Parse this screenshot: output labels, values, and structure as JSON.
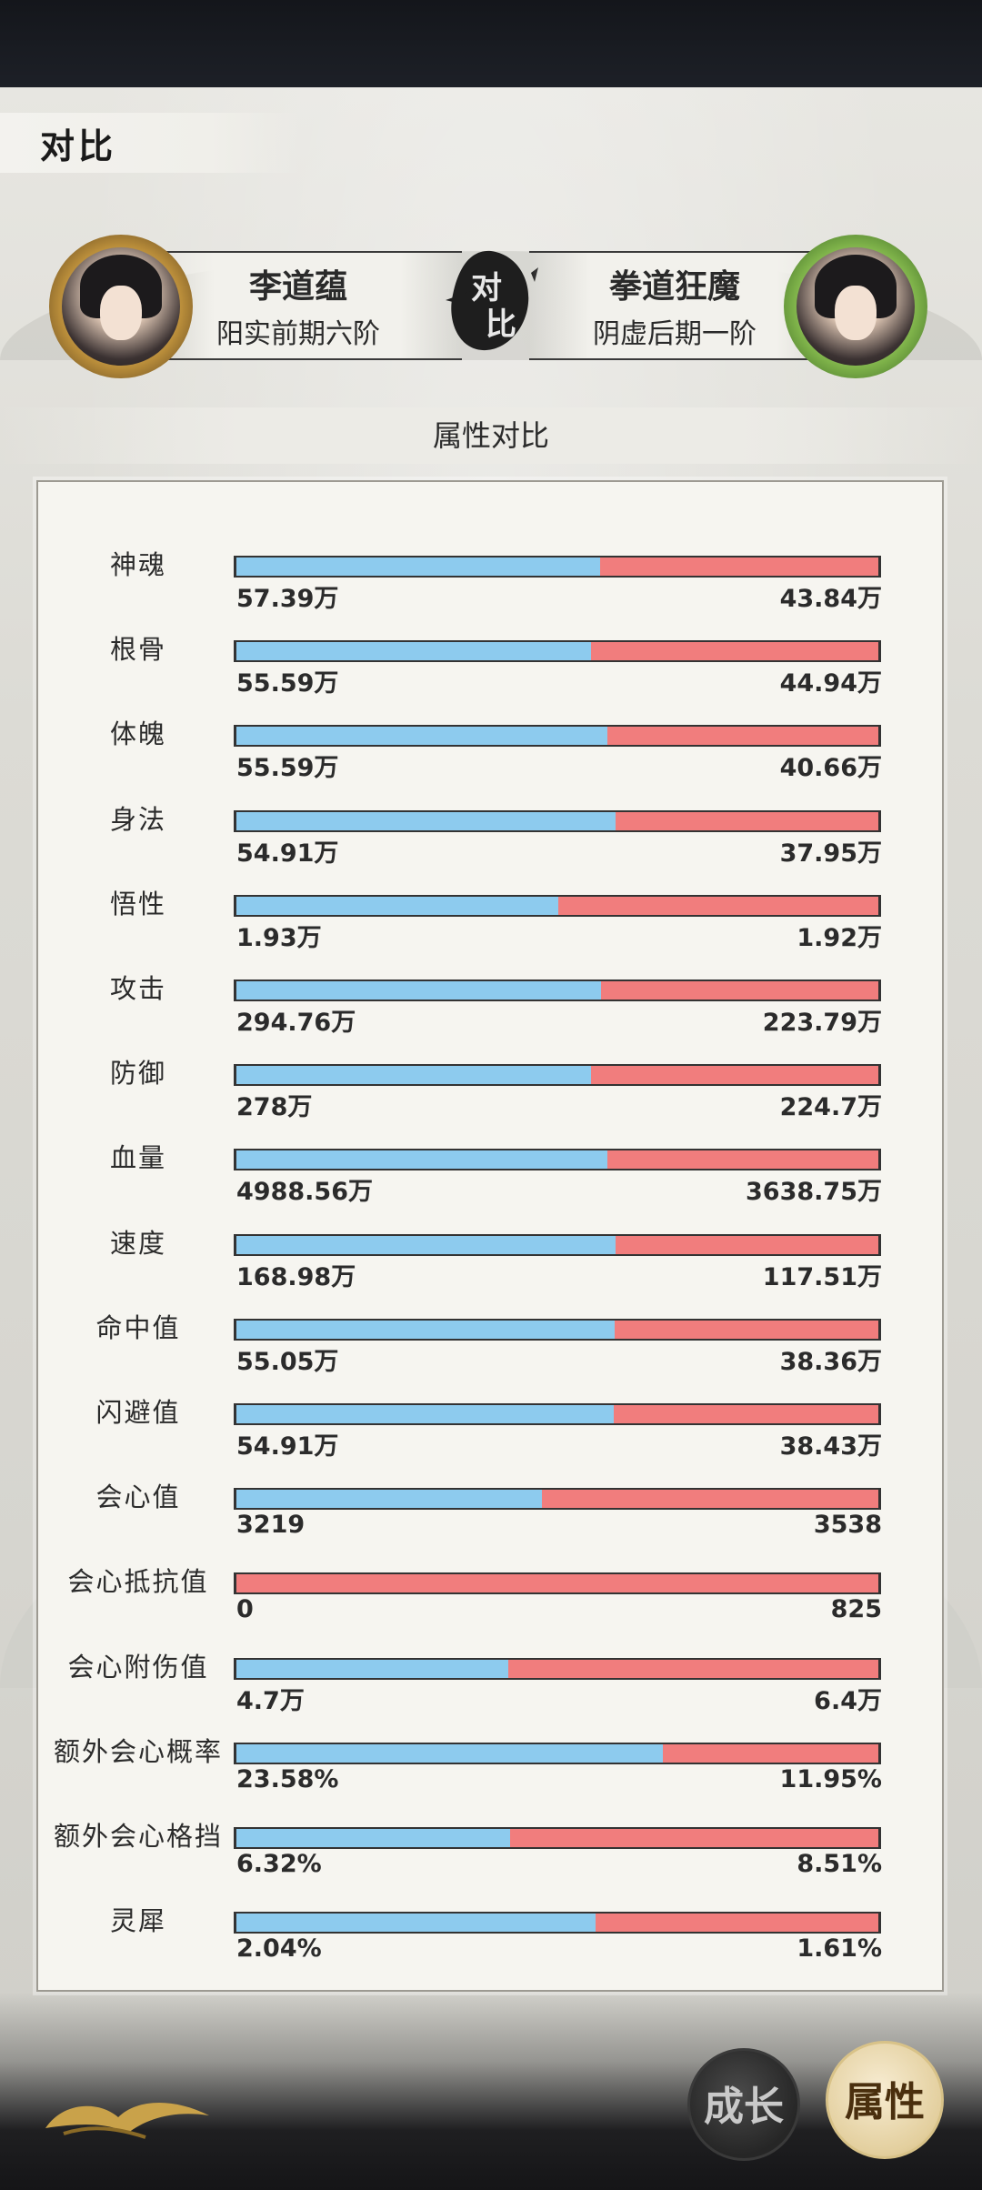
{
  "header": {
    "title": "对比"
  },
  "players": {
    "left": {
      "name": "李道蕴",
      "realm": "阳实前期六阶"
    },
    "right": {
      "name": "拳道狂魔",
      "realm": "阴虚后期一阶"
    }
  },
  "vs_label": [
    "对",
    "比"
  ],
  "section": {
    "title": "属性对比"
  },
  "stats": [
    {
      "label": "神魂",
      "left": "57.39万",
      "right": "43.84万",
      "left_ratio": 0.567
    },
    {
      "label": "根骨",
      "left": "55.59万",
      "right": "44.94万",
      "left_ratio": 0.553
    },
    {
      "label": "体魄",
      "left": "55.59万",
      "right": "40.66万",
      "left_ratio": 0.578
    },
    {
      "label": "身法",
      "left": "54.91万",
      "right": "37.95万",
      "left_ratio": 0.591
    },
    {
      "label": "悟性",
      "left": "1.93万",
      "right": "1.92万",
      "left_ratio": 0.501
    },
    {
      "label": "攻击",
      "left": "294.76万",
      "right": "223.79万",
      "left_ratio": 0.568
    },
    {
      "label": "防御",
      "left": "278万",
      "right": "224.7万",
      "left_ratio": 0.553
    },
    {
      "label": "血量",
      "left": "4988.56万",
      "right": "3638.75万",
      "left_ratio": 0.578
    },
    {
      "label": "速度",
      "left": "168.98万",
      "right": "117.51万",
      "left_ratio": 0.59
    },
    {
      "label": "命中值",
      "left": "55.05万",
      "right": "38.36万",
      "left_ratio": 0.589
    },
    {
      "label": "闪避值",
      "left": "54.91万",
      "right": "38.43万",
      "left_ratio": 0.588
    },
    {
      "label": "会心值",
      "left": "3219",
      "right": "3538",
      "left_ratio": 0.476
    },
    {
      "label": "会心抵抗值",
      "left": "0",
      "right": "825",
      "left_ratio": 0.0
    },
    {
      "label": "会心附伤值",
      "left": "4.7万",
      "right": "6.4万",
      "left_ratio": 0.423
    },
    {
      "label": "额外会心概率",
      "left": "23.58%",
      "right": "11.95%",
      "left_ratio": 0.664
    },
    {
      "label": "额外会心格挡",
      "left": "6.32%",
      "right": "8.51%",
      "left_ratio": 0.426
    },
    {
      "label": "灵犀",
      "left": "2.04%",
      "right": "1.61%",
      "left_ratio": 0.559
    }
  ],
  "bottom": {
    "growth_label": "成长",
    "attr_label": "属性"
  },
  "colors": {
    "left_bar": "#8dcbee",
    "right_bar": "#f17d7d",
    "panel": "#f6f5f0"
  }
}
